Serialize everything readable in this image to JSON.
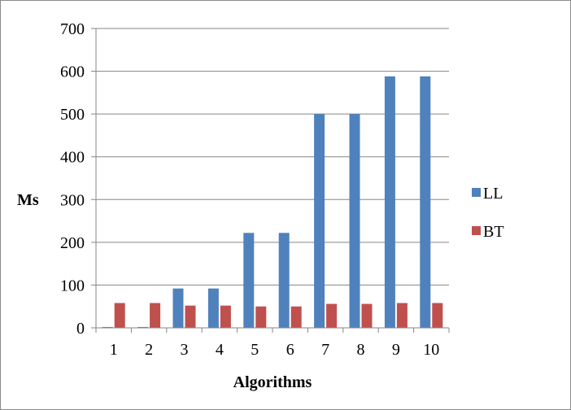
{
  "chart_data": {
    "type": "bar",
    "title": "",
    "xlabel": "Algorithms",
    "ylabel": "Ms",
    "ylim": [
      0,
      700
    ],
    "yticks": [
      0,
      100,
      200,
      300,
      400,
      500,
      600,
      700
    ],
    "grid": true,
    "legend_position": "right",
    "categories": [
      "1",
      "2",
      "3",
      "4",
      "5",
      "6",
      "7",
      "8",
      "9",
      "10"
    ],
    "series": [
      {
        "name": "LL",
        "color": "#4f81bd",
        "values": [
          2,
          2,
          92,
          92,
          222,
          222,
          500,
          500,
          588,
          588
        ]
      },
      {
        "name": "BT",
        "color": "#c0504d",
        "values": [
          58,
          58,
          52,
          52,
          50,
          50,
          56,
          56,
          58,
          58
        ]
      }
    ]
  }
}
